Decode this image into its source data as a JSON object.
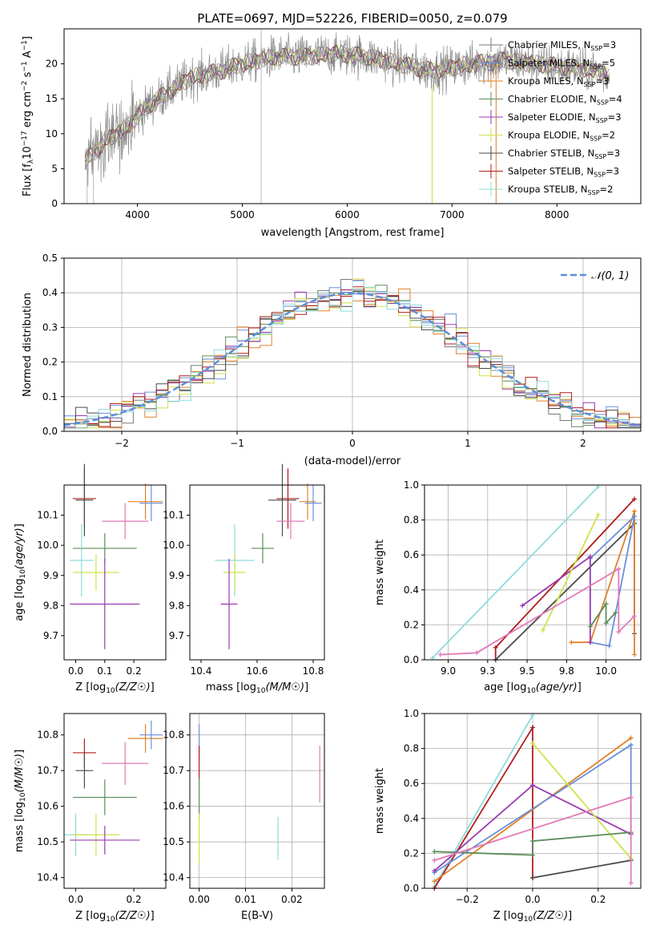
{
  "chart_data": [
    {
      "id": "spectrum",
      "type": "line",
      "title": "PLATE=0697, MJD=52226, FIBERID=0050, z=0.079",
      "xlabel": "wavelength [Angstrom, rest frame]",
      "ylabel": "Flux [f_λ10^-17 erg cm^-2 s^-1 A^-1]",
      "xlim": [
        3300,
        8800
      ],
      "ylim": [
        0,
        25
      ],
      "xticks": [
        4000,
        5000,
        6000,
        7000,
        8000
      ],
      "yticks": [
        0,
        5,
        10,
        15,
        20
      ],
      "legend_position": "right",
      "legend": [
        {
          "label": "Chabrier MILES, N_SSP=3",
          "color": "#7a7a7a"
        },
        {
          "label": "Salpeter MILES, N_SSP=5",
          "color": "#6a8fdb"
        },
        {
          "label": "Kroupa MILES, N_SSP=3",
          "color": "#e0812a"
        },
        {
          "label": "Chabrier ELODIE, N_SSP=4",
          "color": "#5c8c5a"
        },
        {
          "label": "Salpeter ELODIE, N_SSP=3",
          "color": "#9b3bb0"
        },
        {
          "label": "Kroupa ELODIE, N_SSP=2",
          "color": "#cfe24a"
        },
        {
          "label": "Chabrier STELIB, N_SSP=3",
          "color": "#4a4a4a"
        },
        {
          "label": "Salpeter STELIB, N_SSP=3",
          "color": "#b01e1e"
        },
        {
          "label": "Kroupa STELIB, N_SSP=2",
          "color": "#8fdbdb"
        }
      ],
      "continuum": [
        [
          3500,
          6
        ],
        [
          3700,
          9
        ],
        [
          3900,
          11
        ],
        [
          4100,
          14
        ],
        [
          4300,
          16
        ],
        [
          4500,
          18
        ],
        [
          4800,
          19
        ],
        [
          5000,
          20
        ],
        [
          5300,
          21
        ],
        [
          5600,
          21
        ],
        [
          5900,
          21.5
        ],
        [
          6200,
          21
        ],
        [
          6500,
          20
        ],
        [
          6800,
          19
        ],
        [
          7200,
          20
        ],
        [
          7500,
          20.5
        ],
        [
          7800,
          20
        ],
        [
          8100,
          19.5
        ],
        [
          8400,
          19
        ],
        [
          8500,
          18
        ]
      ]
    },
    {
      "id": "residuals",
      "type": "step",
      "xlabel": "(data-model)/error",
      "ylabel": "Normed distribution",
      "xlim": [
        -2.5,
        2.5
      ],
      "ylim": [
        0,
        0.5
      ],
      "xticks": [
        -2,
        -1,
        0,
        1,
        2
      ],
      "yticks": [
        0.0,
        0.1,
        0.2,
        0.3,
        0.4,
        0.5
      ],
      "grid": true,
      "legend": [
        {
          "label": "N(0,1)",
          "color": "#5b8fd9",
          "style": "dashed"
        }
      ],
      "bin_width": 0.1,
      "x_start": -2.5
    },
    {
      "id": "age_vs_Z",
      "type": "errorbar",
      "xlabel": "Z [log10(Z/Z☉)]",
      "ylabel": "age  [log10(age/yr)]",
      "xlim": [
        -0.04,
        0.31
      ],
      "ylim": [
        9.62,
        10.2
      ],
      "xticks": [
        0.0,
        0.1,
        0.2
      ],
      "yticks": [
        9.7,
        9.8,
        9.9,
        10.0,
        10.1
      ],
      "points": [
        {
          "x": 0.03,
          "y": 10.155,
          "xerr": 0.04,
          "yerr": 0.1,
          "color": "#b01e1e"
        },
        {
          "x": 0.03,
          "y": 10.15,
          "xerr": 0.03,
          "yerr": 0.12,
          "color": "#4a4a4a"
        },
        {
          "x": 0.24,
          "y": 10.145,
          "xerr": 0.06,
          "yerr": 0.06,
          "color": "#e0812a"
        },
        {
          "x": 0.26,
          "y": 10.14,
          "xerr": 0.04,
          "yerr": 0.06,
          "color": "#6a8fdb"
        },
        {
          "x": 0.17,
          "y": 10.08,
          "xerr": 0.08,
          "yerr": 0.06,
          "color": "#e27ab8"
        },
        {
          "x": 0.1,
          "y": 9.99,
          "xerr": 0.11,
          "yerr": 0.05,
          "color": "#5c8c5a"
        },
        {
          "x": 0.02,
          "y": 9.95,
          "xerr": 0.04,
          "yerr": 0.12,
          "color": "#8fdbdb"
        },
        {
          "x": 0.07,
          "y": 9.91,
          "xerr": 0.08,
          "yerr": 0.06,
          "color": "#cfe24a"
        },
        {
          "x": 0.1,
          "y": 9.805,
          "xerr": 0.12,
          "yerr": 0.15,
          "color": "#9b3bb0"
        }
      ]
    },
    {
      "id": "age_vs_mass",
      "type": "errorbar",
      "xlabel": "mass [log10(M/M☉)]",
      "ylabel": "",
      "xlim": [
        10.36,
        10.84
      ],
      "ylim": [
        9.62,
        10.2
      ],
      "xticks": [
        10.4,
        10.6,
        10.8
      ],
      "yticks": [
        9.7,
        9.8,
        9.9,
        10.0,
        10.1
      ],
      "points": [
        {
          "x": 10.71,
          "y": 10.155,
          "xerr": 0.04,
          "yerr": 0.1,
          "color": "#b01e1e"
        },
        {
          "x": 10.69,
          "y": 10.15,
          "xerr": 0.05,
          "yerr": 0.12,
          "color": "#4a4a4a"
        },
        {
          "x": 10.78,
          "y": 10.145,
          "xerr": 0.03,
          "yerr": 0.06,
          "color": "#e0812a"
        },
        {
          "x": 10.8,
          "y": 10.14,
          "xerr": 0.03,
          "yerr": 0.06,
          "color": "#6a8fdb"
        },
        {
          "x": 10.72,
          "y": 10.08,
          "xerr": 0.05,
          "yerr": 0.06,
          "color": "#e27ab8"
        },
        {
          "x": 10.62,
          "y": 9.99,
          "xerr": 0.04,
          "yerr": 0.05,
          "color": "#5c8c5a"
        },
        {
          "x": 10.52,
          "y": 9.95,
          "xerr": 0.07,
          "yerr": 0.12,
          "color": "#8fdbdb"
        },
        {
          "x": 10.52,
          "y": 9.91,
          "xerr": 0.04,
          "yerr": 0.06,
          "color": "#cfe24a"
        },
        {
          "x": 10.5,
          "y": 9.805,
          "xerr": 0.03,
          "yerr": 0.15,
          "color": "#9b3bb0"
        }
      ]
    },
    {
      "id": "mass_weight_vs_age",
      "type": "line",
      "xlabel": "age  [log10(age/yr)]",
      "ylabel": "mass weight",
      "xlim": [
        8.85,
        10.22
      ],
      "ylim": [
        0,
        1.0
      ],
      "xticks": [
        9.0,
        9.25,
        9.5,
        9.75,
        10.0
      ],
      "yticks": [
        0.0,
        0.2,
        0.4,
        0.6,
        0.8,
        1.0
      ],
      "grid": true,
      "series": [
        {
          "color": "#8fdbdb",
          "points": [
            [
              8.9,
              0.01
            ],
            [
              9.95,
              0.99
            ]
          ]
        },
        {
          "color": "#b01e1e",
          "points": [
            [
              9.3,
              0.0
            ],
            [
              9.3,
              0.07
            ],
            [
              10.18,
              0.92
            ]
          ]
        },
        {
          "color": "#4a4a4a",
          "points": [
            [
              9.3,
              0.0
            ],
            [
              10.18,
              0.78
            ],
            [
              10.18,
              0.15
            ]
          ]
        },
        {
          "color": "#e0812a",
          "points": [
            [
              9.78,
              0.1
            ],
            [
              9.9,
              0.1
            ],
            [
              10.18,
              0.85
            ],
            [
              10.18,
              0.03
            ]
          ]
        },
        {
          "color": "#6a8fdb",
          "points": [
            [
              9.9,
              0.1
            ],
            [
              10.02,
              0.08
            ],
            [
              10.18,
              0.82
            ],
            [
              9.9,
              0.58
            ]
          ]
        },
        {
          "color": "#9b3bb0",
          "points": [
            [
              9.47,
              0.31
            ],
            [
              9.9,
              0.59
            ],
            [
              9.9,
              0.1
            ]
          ]
        },
        {
          "color": "#cfe24a",
          "points": [
            [
              9.6,
              0.17
            ],
            [
              9.95,
              0.83
            ]
          ]
        },
        {
          "color": "#5c8c5a",
          "points": [
            [
              9.9,
              0.19
            ],
            [
              10.0,
              0.32
            ],
            [
              10.0,
              0.21
            ],
            [
              10.06,
              0.27
            ]
          ]
        },
        {
          "color": "#e27ab8",
          "points": [
            [
              8.95,
              0.03
            ],
            [
              9.18,
              0.04
            ],
            [
              10.08,
              0.52
            ],
            [
              10.08,
              0.16
            ],
            [
              10.18,
              0.25
            ]
          ]
        }
      ]
    },
    {
      "id": "mass_vs_Z",
      "type": "errorbar",
      "xlabel": "Z [log10(Z/Z☉)]",
      "ylabel": "mass [log10(M/M☉)]",
      "xlim": [
        -0.04,
        0.31
      ],
      "ylim": [
        10.37,
        10.86
      ],
      "xticks": [
        0.0,
        0.2
      ],
      "yticks": [
        10.4,
        10.5,
        10.6,
        10.7,
        10.8
      ],
      "points": [
        {
          "x": 0.03,
          "y": 10.75,
          "xerr": 0.04,
          "yerr": 0.04,
          "color": "#b01e1e"
        },
        {
          "x": 0.03,
          "y": 10.7,
          "xerr": 0.03,
          "yerr": 0.05,
          "color": "#4a4a4a"
        },
        {
          "x": 0.24,
          "y": 10.79,
          "xerr": 0.06,
          "yerr": 0.04,
          "color": "#e0812a"
        },
        {
          "x": 0.26,
          "y": 10.8,
          "xerr": 0.04,
          "yerr": 0.04,
          "color": "#6a8fdb"
        },
        {
          "x": 0.17,
          "y": 10.72,
          "xerr": 0.08,
          "yerr": 0.06,
          "color": "#e27ab8"
        },
        {
          "x": 0.1,
          "y": 10.625,
          "xerr": 0.11,
          "yerr": 0.05,
          "color": "#5c8c5a"
        },
        {
          "x": 0.0,
          "y": 10.52,
          "xerr": 0.04,
          "yerr": 0.06,
          "color": "#8fdbdb"
        },
        {
          "x": 0.07,
          "y": 10.52,
          "xerr": 0.08,
          "yerr": 0.06,
          "color": "#cfe24a"
        },
        {
          "x": 0.1,
          "y": 10.505,
          "xerr": 0.12,
          "yerr": 0.04,
          "color": "#9b3bb0"
        }
      ]
    },
    {
      "id": "mass_vs_ebv",
      "type": "errorbar",
      "xlabel": "E(B-V)",
      "ylabel": "",
      "xlim": [
        -0.002,
        0.027
      ],
      "ylim": [
        10.37,
        10.86
      ],
      "xticks": [
        0.0,
        0.01,
        0.02
      ],
      "yticks": [
        10.4,
        10.5,
        10.6,
        10.7,
        10.8
      ],
      "grid": true,
      "points": [
        {
          "x": 0.0,
          "y": 10.78,
          "xerr": 0,
          "yerr": 0.05,
          "color": "#6a8fdb"
        },
        {
          "x": 0.0,
          "y": 10.72,
          "xerr": 0,
          "yerr": 0.05,
          "color": "#b01e1e"
        },
        {
          "x": 0.0,
          "y": 10.62,
          "xerr": 0,
          "yerr": 0.06,
          "color": "#5c8c5a"
        },
        {
          "x": 0.0,
          "y": 10.51,
          "xerr": 0,
          "yerr": 0.07,
          "color": "#cfe24a"
        },
        {
          "x": 0.017,
          "y": 10.51,
          "xerr": 0,
          "yerr": 0.06,
          "color": "#8fdbdb"
        },
        {
          "x": 0.026,
          "y": 10.69,
          "xerr": 0,
          "yerr": 0.08,
          "color": "#e27ab8"
        }
      ]
    },
    {
      "id": "mass_weight_vs_Z",
      "type": "line",
      "xlabel": "Z [log10(Z/Z☉)]",
      "ylabel": "mass weight",
      "xlim": [
        -0.33,
        0.33
      ],
      "ylim": [
        0,
        1.0
      ],
      "xticks": [
        -0.2,
        0.0,
        0.2
      ],
      "yticks": [
        0.0,
        0.2,
        0.4,
        0.6,
        0.8,
        1.0
      ],
      "grid": true,
      "series": [
        {
          "color": "#8fdbdb",
          "points": [
            [
              -0.3,
              0.01
            ],
            [
              0.0,
              0.99
            ]
          ]
        },
        {
          "color": "#b01e1e",
          "points": [
            [
              -0.3,
              0.0
            ],
            [
              0.0,
              0.92
            ],
            [
              0.0,
              0.06
            ]
          ]
        },
        {
          "color": "#4a4a4a",
          "points": [
            [
              0.0,
              0.06
            ],
            [
              0.3,
              0.16
            ]
          ]
        },
        {
          "color": "#e0812a",
          "points": [
            [
              -0.3,
              0.04
            ],
            [
              0.3,
              0.86
            ]
          ]
        },
        {
          "color": "#6a8fdb",
          "points": [
            [
              -0.3,
              0.09
            ],
            [
              0.3,
              0.82
            ],
            [
              0.3,
              0.31
            ]
          ]
        },
        {
          "color": "#9b3bb0",
          "points": [
            [
              -0.3,
              0.1
            ],
            [
              0.0,
              0.59
            ],
            [
              0.3,
              0.31
            ]
          ]
        },
        {
          "color": "#cfe24a",
          "points": [
            [
              0.0,
              0.83
            ],
            [
              0.3,
              0.17
            ]
          ]
        },
        {
          "color": "#5c8c5a",
          "points": [
            [
              -0.3,
              0.21
            ],
            [
              0.0,
              0.19
            ],
            [
              0.0,
              0.27
            ],
            [
              0.3,
              0.32
            ]
          ]
        },
        {
          "color": "#e27ab8",
          "points": [
            [
              -0.3,
              0.16
            ],
            [
              0.3,
              0.52
            ],
            [
              0.3,
              0.03
            ]
          ]
        }
      ]
    }
  ]
}
